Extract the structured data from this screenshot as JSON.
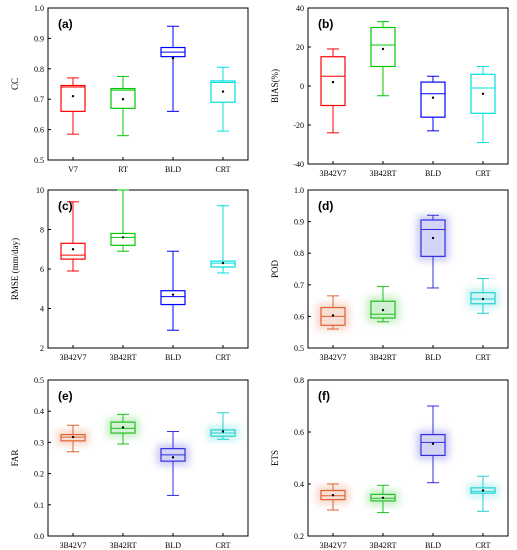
{
  "chart_data": [
    {
      "id": "a",
      "panel_label": "(a)",
      "type": "box",
      "categories": [
        "V7",
        "RT",
        "BLD",
        "CRT"
      ],
      "colors": [
        "#ff0000",
        "#00c800",
        "#0000ff",
        "#00e0e0"
      ],
      "ylabel": "CC",
      "ylim": [
        0.5,
        1.0
      ],
      "yticks": [
        "0.5",
        "0.6",
        "0.7",
        "0.8",
        "0.9",
        "1.0"
      ],
      "boxes": [
        {
          "min": 0.585,
          "q1": 0.66,
          "median": 0.74,
          "q3": 0.745,
          "max": 0.77,
          "mean": 0.71
        },
        {
          "min": 0.58,
          "q1": 0.67,
          "median": 0.73,
          "q3": 0.735,
          "max": 0.775,
          "mean": 0.7
        },
        {
          "min": 0.66,
          "q1": 0.84,
          "median": 0.855,
          "q3": 0.87,
          "max": 0.94,
          "mean": 0.835
        },
        {
          "min": 0.595,
          "q1": 0.69,
          "median": 0.755,
          "q3": 0.76,
          "max": 0.805,
          "mean": 0.725
        }
      ]
    },
    {
      "id": "b",
      "panel_label": "(b)",
      "type": "box",
      "categories": [
        "3B42V7",
        "3B42RT",
        "BLD",
        "CRT"
      ],
      "colors": [
        "#ff0000",
        "#00c800",
        "#0000ff",
        "#00e0e0"
      ],
      "ylabel": "BIAS(%)",
      "ylim": [
        -40,
        40
      ],
      "yticks": [
        "-40",
        "-20",
        "0",
        "20",
        "40"
      ],
      "boxes": [
        {
          "min": -24,
          "q1": -10,
          "median": 5,
          "q3": 15,
          "max": 19,
          "mean": 2
        },
        {
          "min": -5,
          "q1": 10,
          "median": 21,
          "q3": 30,
          "max": 33,
          "mean": 19
        },
        {
          "min": -23,
          "q1": -16,
          "median": -4,
          "q3": 2,
          "max": 5,
          "mean": -6
        },
        {
          "min": -29,
          "q1": -14,
          "median": -1,
          "q3": 6,
          "max": 10,
          "mean": -4
        }
      ]
    },
    {
      "id": "c",
      "panel_label": "(c)",
      "type": "box",
      "categories": [
        "3B42V7",
        "3B42RT",
        "BLD",
        "CRT"
      ],
      "colors": [
        "#ff0000",
        "#00c800",
        "#0000ff",
        "#00e0e0"
      ],
      "ylabel": "RMSE (mm/day)",
      "ylim": [
        2,
        10
      ],
      "yticks": [
        "2",
        "4",
        "6",
        "8",
        "10"
      ],
      "boxes": [
        {
          "min": 5.9,
          "q1": 6.5,
          "median": 6.7,
          "q3": 7.3,
          "max": 9.4,
          "mean": 7.0
        },
        {
          "min": 6.9,
          "q1": 7.2,
          "median": 7.6,
          "q3": 7.8,
          "max": 10.0,
          "mean": 7.6
        },
        {
          "min": 2.9,
          "q1": 4.2,
          "median": 4.6,
          "q3": 4.9,
          "max": 6.9,
          "mean": 4.7
        },
        {
          "min": 5.8,
          "q1": 6.1,
          "median": 6.3,
          "q3": 6.4,
          "max": 9.2,
          "mean": 6.3
        }
      ]
    },
    {
      "id": "d",
      "panel_label": "(d)",
      "type": "box",
      "categories": [
        "3B42V7",
        "3B42RT",
        "BLD",
        "CRT"
      ],
      "colors": [
        "#e06030",
        "#20c020",
        "#3030e0",
        "#20d0d0"
      ],
      "ylabel": "POD",
      "ylim": [
        0.5,
        1.0
      ],
      "yticks": [
        "0.5",
        "0.6",
        "0.7",
        "0.8",
        "0.9",
        "1.0"
      ],
      "boxes": [
        {
          "min": 0.56,
          "q1": 0.572,
          "median": 0.6,
          "q3": 0.628,
          "max": 0.665,
          "mean": 0.603
        },
        {
          "min": 0.583,
          "q1": 0.595,
          "median": 0.607,
          "q3": 0.648,
          "max": 0.695,
          "mean": 0.62
        },
        {
          "min": 0.69,
          "q1": 0.79,
          "median": 0.875,
          "q3": 0.905,
          "max": 0.92,
          "mean": 0.848
        },
        {
          "min": 0.61,
          "q1": 0.64,
          "median": 0.655,
          "q3": 0.675,
          "max": 0.72,
          "mean": 0.655
        }
      ]
    },
    {
      "id": "e",
      "panel_label": "(e)",
      "type": "box",
      "categories": [
        "3B42V7",
        "3B42RT",
        "BLD",
        "CRT"
      ],
      "colors": [
        "#e06030",
        "#20c020",
        "#3030e0",
        "#20d0d0"
      ],
      "ylabel": "FAR",
      "ylim": [
        0.0,
        0.5
      ],
      "yticks": [
        "0.0",
        "0.1",
        "0.2",
        "0.3",
        "0.4",
        "0.5"
      ],
      "boxes": [
        {
          "min": 0.27,
          "q1": 0.305,
          "median": 0.317,
          "q3": 0.325,
          "max": 0.355,
          "mean": 0.317
        },
        {
          "min": 0.295,
          "q1": 0.33,
          "median": 0.345,
          "q3": 0.365,
          "max": 0.39,
          "mean": 0.348
        },
        {
          "min": 0.13,
          "q1": 0.24,
          "median": 0.26,
          "q3": 0.28,
          "max": 0.335,
          "mean": 0.252
        },
        {
          "min": 0.31,
          "q1": 0.32,
          "median": 0.33,
          "q3": 0.34,
          "max": 0.395,
          "mean": 0.335
        }
      ]
    },
    {
      "id": "f",
      "panel_label": "(f)",
      "type": "box",
      "categories": [
        "3B42V7",
        "3B42RT",
        "BLD",
        "CRT"
      ],
      "colors": [
        "#e06030",
        "#20c020",
        "#3030e0",
        "#20d0d0"
      ],
      "ylabel": "ETS",
      "ylim": [
        0.2,
        0.8
      ],
      "yticks": [
        "0.2",
        "0.4",
        "0.6",
        "0.8"
      ],
      "boxes": [
        {
          "min": 0.3,
          "q1": 0.34,
          "median": 0.355,
          "q3": 0.375,
          "max": 0.4,
          "mean": 0.357
        },
        {
          "min": 0.29,
          "q1": 0.335,
          "median": 0.345,
          "q3": 0.36,
          "max": 0.395,
          "mean": 0.347
        },
        {
          "min": 0.405,
          "q1": 0.51,
          "median": 0.56,
          "q3": 0.59,
          "max": 0.7,
          "mean": 0.555
        },
        {
          "min": 0.295,
          "q1": 0.365,
          "median": 0.372,
          "q3": 0.385,
          "max": 0.43,
          "mean": 0.375
        }
      ]
    }
  ]
}
